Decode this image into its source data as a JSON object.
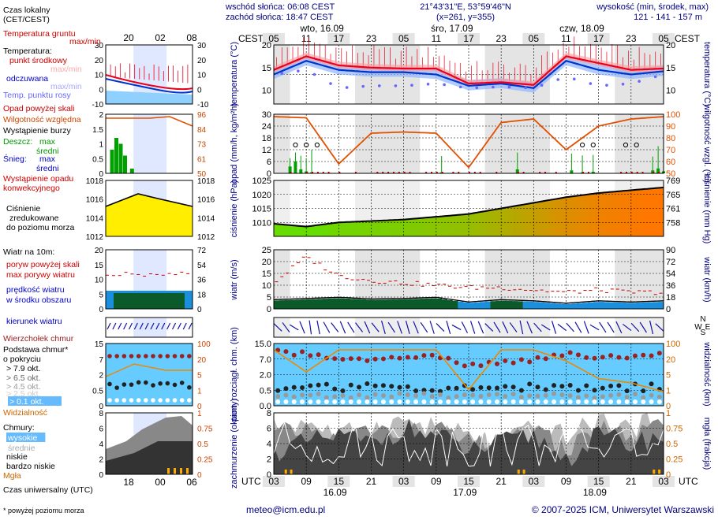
{
  "header": {
    "sunrise": "wschód słońca: 06:08 CEST",
    "sunset": "zachód słońca: 18:47 CEST",
    "coords": "21°43'31\"E, 53°59'46\"N",
    "grid": "(x=261,  y=355)",
    "elev_title": "wysokość (min, środek, max)",
    "elev_values": "121 - 141 - 157 m"
  },
  "timeline": {
    "tz_top": "CEST",
    "tz_bottom": "UTC",
    "day_labels_top": [
      "wto, 16.09",
      "śro, 17.09",
      "czw, 18.09"
    ],
    "hours_top": [
      "05",
      "11",
      "17",
      "23",
      "05",
      "11",
      "17",
      "23",
      "05",
      "11",
      "17",
      "23",
      "05"
    ],
    "hours_bottom": [
      "03",
      "09",
      "15",
      "21",
      "03",
      "09",
      "15",
      "21",
      "03",
      "09",
      "15",
      "21",
      "03"
    ],
    "day_labels_bottom": [
      "16.09",
      "17.09",
      "18.09"
    ]
  },
  "legend": {
    "local_time": [
      "Czas lokalny",
      "(CET/CEST)"
    ],
    "local_ticks": [
      "20",
      "02",
      "08"
    ],
    "utc_ticks": [
      "18",
      "00",
      "06"
    ],
    "utc_label": "Czas uniwersalny (UTC)",
    "temp_soil": [
      "Temperatura gruntu",
      "max/min"
    ],
    "temp_title": "Temperatura:",
    "temp_mid": "punkt środkowy",
    "temp_maxmin": "max/min",
    "temp_felt": "odczuwana",
    "temp_felt_mm": "max/min",
    "temp_dew": "Temp. punktu rosy",
    "precip_above": "Opad powyżej skali",
    "humidity": "Wilgotność względna",
    "storm": "Wystąpienie burzy",
    "rain": "Deszcz:",
    "rain_max": "max",
    "rain_mid": "średni",
    "snow": "Śnieg:",
    "snow_max": "max",
    "snow_mid": "średni",
    "conv": [
      "Wystąpienie opadu",
      "konwekcyjnego"
    ],
    "pressure": [
      "Ciśnienie",
      "zredukowane",
      "do poziomu morza"
    ],
    "wind_title": "Wiatr na 10m:",
    "gust_above": "poryw powyżej skali",
    "gust_max": "max porywy wiatru",
    "wind_speed": [
      "prędkość wiatru",
      "w środku obszaru"
    ],
    "wind_dir": "kierunek wiatru",
    "cloud_top": "Wierzchołek chmur",
    "cloud_base": [
      "Podstawa chmur*",
      "o pokryciu"
    ],
    "cloud_okt": [
      "> 7.9 okt.",
      "> 6.5 okt.",
      "> 4.5 okt.",
      "> 2.5 okt.",
      "> 0.1 okt."
    ],
    "visibility": "Widzialność",
    "clouds_title": "Chmury:",
    "cloud_levels": [
      "wysokie",
      "średnie",
      "niskie",
      "bardzo niskie"
    ],
    "fog": "Mgła",
    "footnote": "* powyżej poziomu morza"
  },
  "axes": {
    "temp_left": "temperatura (°C)",
    "temp_right": "temperatura (°C)",
    "precip_left": "opad (mm/h, kg/m²h)",
    "precip_right": "wilgotność wzgl. (%)",
    "pres_left": "ciśnienie (hPa)",
    "pres_right": "ciśnienie (mm Hg)",
    "wind_left": "wiatr (m/s)",
    "wind_right": "wiatr (km/h)",
    "cloud_left": "pion. rozciągł. chm. (km)",
    "cloud_right": "widzialność (km)",
    "cover_left": "zachmurzenie (oktanty)",
    "cover_right": "mgła (frakcja)"
  },
  "footer": {
    "email": "meteo@icm.edu.pl",
    "copyright": "© 2007-2025 ICM, Uniwersytet Warszawski"
  },
  "colors": {
    "temp": "#e8001c",
    "felt": "#0033cc",
    "dew": "#6666ff",
    "humidity": "#e05000",
    "rain": "#00a000",
    "pressure_low": "#66dd00",
    "pressure_high": "#ff7700",
    "wind_fill": "#1188ff",
    "gust": "#cc0000",
    "sky": "#66ccff",
    "night": "#dddddd"
  },
  "chart_data": [
    {
      "type": "line",
      "title": "temperatura",
      "ylim": [
        7,
        20
      ],
      "yticks": [
        10,
        15,
        20
      ],
      "right_ticks": [
        10,
        15,
        20
      ],
      "x": [
        0,
        6,
        12,
        18,
        24,
        30,
        36,
        42,
        48,
        54,
        60,
        66,
        72
      ],
      "series": [
        {
          "name": "punkt środkowy",
          "values": [
            14.5,
            17.5,
            15.5,
            15.0,
            14.8,
            14.8,
            11.5,
            11.8,
            11.2,
            17.5,
            16.0,
            14.5,
            14.8
          ]
        },
        {
          "name": "odczuwana",
          "values": [
            13.5,
            16.5,
            14.5,
            14.0,
            14.0,
            13.5,
            11.0,
            11.5,
            10.5,
            16.5,
            14.5,
            13.5,
            14.2
          ]
        },
        {
          "name": "Temp. punktu rosy",
          "values": [
            13.5,
            14.5,
            10.5,
            11.0,
            11.0,
            11.5,
            10.5,
            10.8,
            10.5,
            13.0,
            11.0,
            11.5,
            13.5
          ]
        }
      ]
    },
    {
      "type": "bar",
      "title": "opad / wilgotność",
      "ylim": [
        0,
        30
      ],
      "yticks": [
        0,
        6,
        12,
        18,
        24,
        30
      ],
      "right_ticks": [
        50,
        60,
        70,
        80,
        90,
        100
      ],
      "x": [
        0,
        6,
        12,
        18,
        24,
        30,
        36,
        42,
        48,
        54,
        60,
        66,
        72
      ],
      "series": [
        {
          "name": "Wilgotność względna",
          "values": [
            98,
            97,
            58,
            84,
            85,
            84,
            55,
            93,
            96,
            70,
            90,
            96,
            98
          ]
        }
      ],
      "rain_bars_hours": [
        3,
        4,
        5,
        6,
        7,
        31,
        45,
        55,
        57,
        59,
        70,
        71,
        72
      ],
      "rain_bars_values": [
        3.5,
        6,
        2,
        1,
        0.5,
        0.5,
        2,
        1.5,
        0.5,
        0.8,
        1.5,
        2.5,
        1.0
      ]
    },
    {
      "type": "area",
      "title": "ciśnienie",
      "ylim": [
        1005,
        1025
      ],
      "yticks": [
        1010,
        1015,
        1020,
        1025
      ],
      "right_ticks": [
        758,
        761,
        765,
        769
      ],
      "x": [
        0,
        6,
        12,
        18,
        24,
        30,
        36,
        42,
        48,
        54,
        60,
        66,
        72
      ],
      "values": [
        1009.5,
        1008.5,
        1010,
        1010.5,
        1011,
        1012,
        1013,
        1015,
        1017,
        1019,
        1020.5,
        1021.5,
        1022.5
      ]
    },
    {
      "type": "area",
      "title": "wiatr",
      "ylim": [
        0,
        25
      ],
      "yticks": [
        0,
        5,
        10,
        15,
        20,
        25
      ],
      "right_ticks": [
        0,
        18,
        36,
        54,
        72,
        90
      ],
      "x": [
        0,
        6,
        12,
        18,
        24,
        30,
        36,
        42,
        48,
        54,
        60,
        66,
        72
      ],
      "series": [
        {
          "name": "prędkość wiatru",
          "values": [
            3.5,
            4.0,
            4.5,
            3.8,
            4.0,
            4.5,
            2.5,
            3.5,
            3.0,
            2.0,
            3.0,
            2.5,
            3.0
          ]
        },
        {
          "name": "max porywy wiatru",
          "values": [
            10,
            21,
            13,
            11,
            10,
            9,
            8,
            8,
            7,
            6,
            7,
            6,
            6
          ]
        }
      ]
    },
    {
      "type": "scatter",
      "title": "chmury",
      "ylim": [
        0,
        15
      ],
      "yticks": [
        0.0,
        0.5,
        2.0,
        7.0,
        15.0
      ],
      "right_ticks": [
        0,
        1,
        5,
        20,
        100
      ],
      "series": [
        {
          "name": "Wierzchołek chmur",
          "values": [
            12.5,
            12.0,
            10.5,
            10.5,
            11.0,
            11.5,
            9.0,
            10.0,
            10.5,
            12.0,
            11.0,
            11.5,
            12.0
          ]
        },
        {
          "name": "Widzialność",
          "values": [
            20,
            10,
            20,
            20,
            20,
            20,
            2,
            20,
            20,
            15,
            7,
            5,
            1
          ]
        }
      ]
    },
    {
      "type": "area",
      "title": "zachmurzenie",
      "ylim": [
        0,
        8
      ],
      "yticks": [
        0,
        2,
        4,
        6,
        8
      ],
      "right_ticks": [
        0,
        0.25,
        0.5,
        0.75,
        1
      ],
      "series": [
        {
          "name": "wysokie",
          "values": [
            6,
            7,
            5,
            6,
            7,
            6,
            5,
            4,
            6,
            5,
            7,
            6,
            7
          ]
        },
        {
          "name": "średnie",
          "values": [
            5,
            6,
            4,
            6,
            5,
            6,
            4,
            3,
            6,
            3,
            6,
            5,
            6
          ]
        },
        {
          "name": "niskie",
          "values": [
            3,
            4,
            5,
            4,
            6,
            5,
            3,
            4,
            5,
            2,
            5,
            4,
            5
          ]
        }
      ]
    }
  ]
}
